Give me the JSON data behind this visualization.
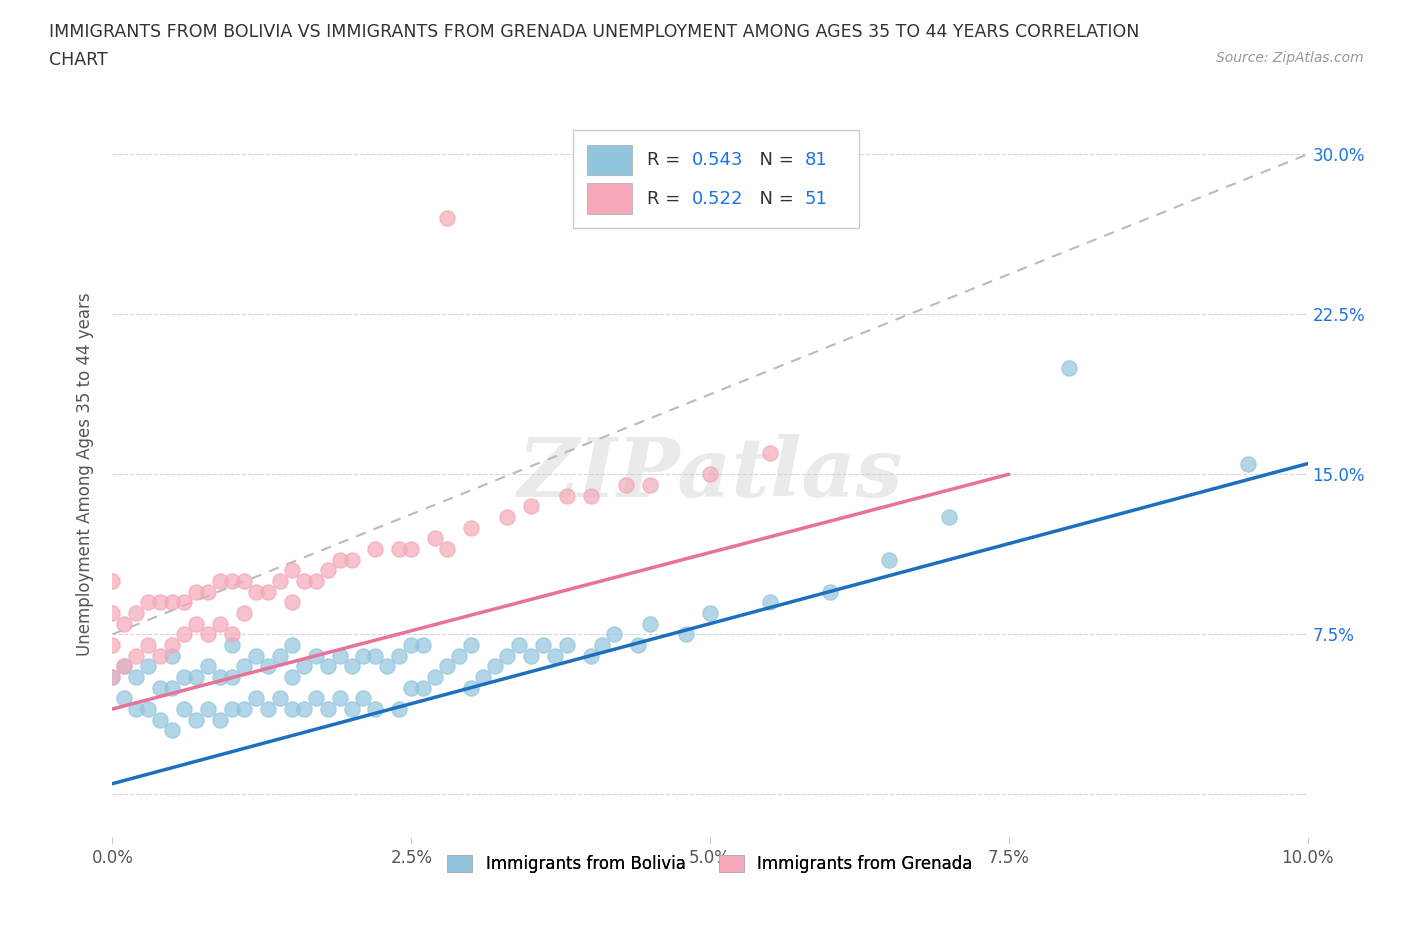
{
  "title_line1": "IMMIGRANTS FROM BOLIVIA VS IMMIGRANTS FROM GRENADA UNEMPLOYMENT AMONG AGES 35 TO 44 YEARS CORRELATION",
  "title_line2": "CHART",
  "source_text": "Source: ZipAtlas.com",
  "ylabel": "Unemployment Among Ages 35 to 44 years",
  "xlim": [
    0.0,
    0.1
  ],
  "ylim": [
    -0.02,
    0.32
  ],
  "xticks": [
    0.0,
    0.025,
    0.05,
    0.075,
    0.1
  ],
  "xticklabels": [
    "0.0%",
    "2.5%",
    "5.0%",
    "7.5%",
    "10.0%"
  ],
  "yticks": [
    0.0,
    0.075,
    0.15,
    0.225,
    0.3
  ],
  "yticklabels": [
    "",
    "7.5%",
    "15.0%",
    "22.5%",
    "30.0%"
  ],
  "bolivia_color": "#92c5de",
  "grenada_color": "#f4a7b9",
  "bolivia_line_color": "#1f6fbf",
  "grenada_line_color": "#e8729a",
  "R_bolivia": 0.543,
  "N_bolivia": 81,
  "R_grenada": 0.522,
  "N_grenada": 51,
  "legend_label_bolivia": "Immigrants from Bolivia",
  "legend_label_grenada": "Immigrants from Grenada",
  "watermark": "ZIPatlas",
  "bolivia_trend": [
    0.005,
    0.155
  ],
  "grenada_trend": [
    0.04,
    0.15
  ],
  "dash_trend": [
    0.075,
    0.3
  ],
  "bolivia_scatter_x": [
    0.0,
    0.001,
    0.001,
    0.002,
    0.002,
    0.003,
    0.003,
    0.004,
    0.004,
    0.005,
    0.005,
    0.005,
    0.006,
    0.006,
    0.007,
    0.007,
    0.008,
    0.008,
    0.009,
    0.009,
    0.01,
    0.01,
    0.01,
    0.011,
    0.011,
    0.012,
    0.012,
    0.013,
    0.013,
    0.014,
    0.014,
    0.015,
    0.015,
    0.015,
    0.016,
    0.016,
    0.017,
    0.017,
    0.018,
    0.018,
    0.019,
    0.019,
    0.02,
    0.02,
    0.021,
    0.021,
    0.022,
    0.022,
    0.023,
    0.024,
    0.024,
    0.025,
    0.025,
    0.026,
    0.026,
    0.027,
    0.028,
    0.029,
    0.03,
    0.03,
    0.031,
    0.032,
    0.033,
    0.034,
    0.035,
    0.036,
    0.037,
    0.038,
    0.04,
    0.041,
    0.042,
    0.044,
    0.045,
    0.048,
    0.05,
    0.055,
    0.06,
    0.065,
    0.07,
    0.08,
    0.095
  ],
  "bolivia_scatter_y": [
    0.055,
    0.045,
    0.06,
    0.04,
    0.055,
    0.04,
    0.06,
    0.035,
    0.05,
    0.03,
    0.05,
    0.065,
    0.04,
    0.055,
    0.035,
    0.055,
    0.04,
    0.06,
    0.035,
    0.055,
    0.04,
    0.055,
    0.07,
    0.04,
    0.06,
    0.045,
    0.065,
    0.04,
    0.06,
    0.045,
    0.065,
    0.04,
    0.055,
    0.07,
    0.04,
    0.06,
    0.045,
    0.065,
    0.04,
    0.06,
    0.045,
    0.065,
    0.04,
    0.06,
    0.045,
    0.065,
    0.04,
    0.065,
    0.06,
    0.04,
    0.065,
    0.05,
    0.07,
    0.05,
    0.07,
    0.055,
    0.06,
    0.065,
    0.05,
    0.07,
    0.055,
    0.06,
    0.065,
    0.07,
    0.065,
    0.07,
    0.065,
    0.07,
    0.065,
    0.07,
    0.075,
    0.07,
    0.08,
    0.075,
    0.085,
    0.09,
    0.095,
    0.11,
    0.13,
    0.2,
    0.155
  ],
  "grenada_scatter_x": [
    0.0,
    0.0,
    0.0,
    0.0,
    0.001,
    0.001,
    0.002,
    0.002,
    0.003,
    0.003,
    0.004,
    0.004,
    0.005,
    0.005,
    0.006,
    0.006,
    0.007,
    0.007,
    0.008,
    0.008,
    0.009,
    0.009,
    0.01,
    0.01,
    0.011,
    0.011,
    0.012,
    0.013,
    0.014,
    0.015,
    0.015,
    0.016,
    0.017,
    0.018,
    0.019,
    0.02,
    0.022,
    0.024,
    0.025,
    0.027,
    0.028,
    0.03,
    0.033,
    0.035,
    0.038,
    0.04,
    0.043,
    0.045,
    0.05,
    0.055,
    0.028
  ],
  "grenada_scatter_y": [
    0.055,
    0.07,
    0.085,
    0.1,
    0.06,
    0.08,
    0.065,
    0.085,
    0.07,
    0.09,
    0.065,
    0.09,
    0.07,
    0.09,
    0.075,
    0.09,
    0.08,
    0.095,
    0.075,
    0.095,
    0.08,
    0.1,
    0.075,
    0.1,
    0.085,
    0.1,
    0.095,
    0.095,
    0.1,
    0.09,
    0.105,
    0.1,
    0.1,
    0.105,
    0.11,
    0.11,
    0.115,
    0.115,
    0.115,
    0.12,
    0.115,
    0.125,
    0.13,
    0.135,
    0.14,
    0.14,
    0.145,
    0.145,
    0.15,
    0.16,
    0.27
  ]
}
